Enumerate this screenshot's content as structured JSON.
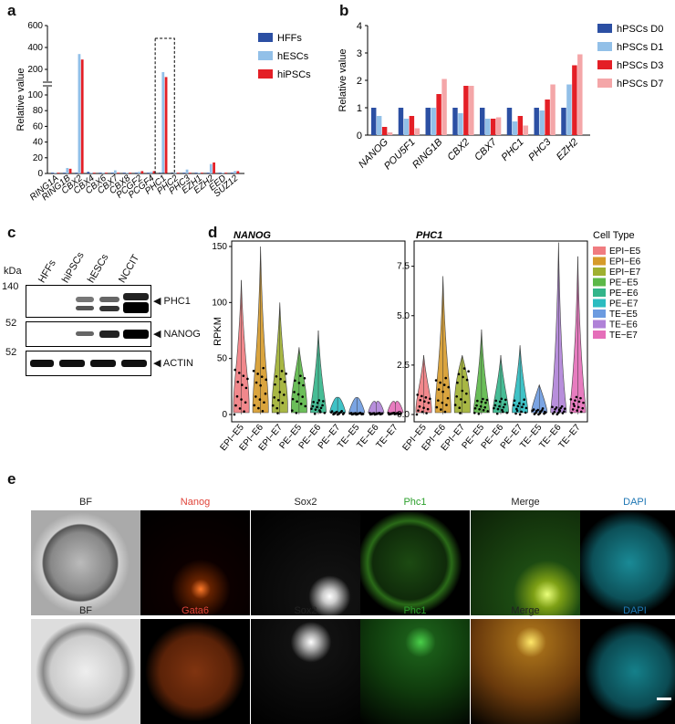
{
  "panel_letters": {
    "a": "a",
    "b": "b",
    "c": "c",
    "d": "d",
    "e": "e"
  },
  "chart_data": [
    {
      "panel": "a",
      "type": "bar",
      "ylabel": "Relative value",
      "yticks_low": [
        "0",
        "20",
        "40",
        "60",
        "80",
        "100"
      ],
      "yticks_high": [
        "200",
        "400",
        "600"
      ],
      "categories": [
        "RING1A",
        "RING1B",
        "CBX2",
        "CBX4",
        "CBX6",
        "CBX7",
        "CBX8",
        "PCGF2",
        "PCGF4",
        "PHC1",
        "PHC2",
        "PHC3",
        "EZH1",
        "EZH2",
        "EED",
        "SUZ12"
      ],
      "series": [
        {
          "name": "HFFs",
          "color": "#2b4fa3",
          "values": [
            1,
            1,
            1,
            2,
            1,
            1,
            1,
            1,
            1,
            1,
            1,
            1,
            1,
            1,
            1,
            1
          ]
        },
        {
          "name": "hESCs",
          "color": "#92c0e8",
          "values": [
            1,
            7,
            340,
            1,
            1,
            4,
            1,
            2,
            2,
            175,
            1,
            5,
            1,
            12,
            1,
            3
          ]
        },
        {
          "name": "hiPSCs",
          "color": "#e41f26",
          "values": [
            1,
            6,
            290,
            1,
            1,
            1,
            1,
            3,
            3,
            130,
            1,
            1,
            1,
            14,
            1,
            3
          ]
        }
      ]
    },
    {
      "panel": "b",
      "type": "bar",
      "ylabel": "Relative value",
      "ylim": [
        0,
        4
      ],
      "yticks": [
        "0",
        "1",
        "2",
        "3",
        "4"
      ],
      "categories": [
        "NANOG",
        "POU5F1",
        "RING1B",
        "CBX2",
        "CBX7",
        "PHC1",
        "PHC3",
        "EZH2"
      ],
      "series": [
        {
          "name": "hPSCs D0",
          "color": "#2b4fa3",
          "values": [
            1,
            1,
            1,
            1,
            1,
            1,
            1,
            1
          ]
        },
        {
          "name": "hPSCs D1",
          "color": "#92c0e8",
          "values": [
            0.7,
            0.6,
            1.0,
            0.8,
            0.6,
            0.5,
            0.9,
            1.85
          ]
        },
        {
          "name": "hPSCs D3",
          "color": "#e41f26",
          "values": [
            0.3,
            0.7,
            1.5,
            1.8,
            0.6,
            0.7,
            1.3,
            2.55
          ]
        },
        {
          "name": "hPSCs D7",
          "color": "#f4a6a8",
          "values": [
            0.1,
            0.25,
            2.05,
            1.8,
            0.65,
            0.35,
            1.85,
            2.95
          ]
        }
      ]
    },
    {
      "panel": "d",
      "type": "violin",
      "ylabel": "RPKM",
      "subplots": [
        {
          "title": "NANOG",
          "yticks": [
            "0",
            "50",
            "100",
            "150"
          ],
          "ymax": 150,
          "medians": [
            28,
            27,
            25,
            22,
            8,
            2,
            1,
            1,
            1
          ],
          "spreads": [
            120,
            150,
            100,
            60,
            75,
            15,
            15,
            10,
            10
          ]
        },
        {
          "title": "PHC1",
          "yticks": [
            "0.0",
            "2.5",
            "5.0",
            "7.5"
          ],
          "ymax": 8.5,
          "medians": [
            0.7,
            1.2,
            1.5,
            0.5,
            0.5,
            0.5,
            0.2,
            0.3,
            0.6
          ],
          "spreads": [
            3,
            7,
            3,
            4.3,
            3,
            3.5,
            1.5,
            8.7,
            8
          ]
        }
      ],
      "categories": [
        "EPI−E5",
        "EPI−E6",
        "EPI−E7",
        "PE−E5",
        "PE−E6",
        "PE−E7",
        "TE−E5",
        "TE−E6",
        "TE−E7"
      ],
      "legend_title": "Cell Type",
      "colors": [
        "#f07c80",
        "#d69b2a",
        "#9fb030",
        "#5cb848",
        "#33b58a",
        "#2bbcc0",
        "#6c9be0",
        "#b082d8",
        "#e56eb9"
      ]
    }
  ],
  "western": {
    "kda_label": "kDa",
    "lanes": [
      "HFFs",
      "hiPSCs",
      "hESCs",
      "NCCIT"
    ],
    "rows": [
      {
        "marker": "140",
        "label": "PHC1"
      },
      {
        "marker": "52",
        "label": "NANOG"
      },
      {
        "marker": "52",
        "label": "ACTIN"
      }
    ]
  },
  "microscopy": {
    "row1": [
      {
        "label": "BF",
        "color": "#222222"
      },
      {
        "label": "Nanog",
        "color": "#e0443a"
      },
      {
        "label": "Sox2",
        "color": "#222222"
      },
      {
        "label": "Phc1",
        "color": "#2ca02c"
      },
      {
        "label": "Merge",
        "color": "#222222"
      },
      {
        "label": "DAPI",
        "color": "#1f77b4"
      }
    ],
    "row2": [
      {
        "label": "BF",
        "color": "#222222"
      },
      {
        "label": "Gata6",
        "color": "#e0443a"
      },
      {
        "label": "Sox2",
        "color": "#222222"
      },
      {
        "label": "Phc1",
        "color": "#2ca02c"
      },
      {
        "label": "Merge",
        "color": "#222222"
      },
      {
        "label": "DAPI",
        "color": "#1f77b4"
      }
    ]
  }
}
